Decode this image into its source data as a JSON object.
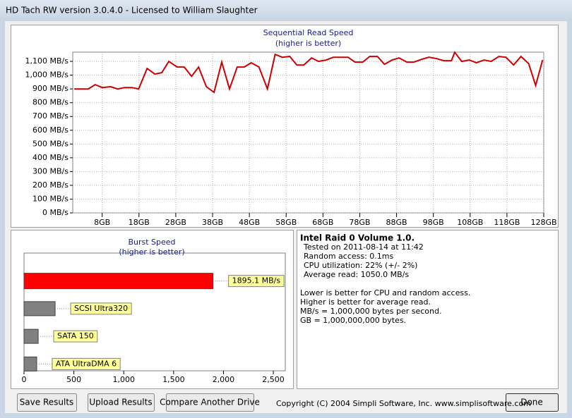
{
  "window": {
    "title": "HD Tach RW version 3.0.4.0 - Licensed to William Slaughter"
  },
  "chart_data": [
    {
      "type": "line",
      "title": "Sequential Read Speed",
      "subtitle": "(higher is better)",
      "color": "#cc0000",
      "grid": true,
      "x": [
        0.4,
        4.2,
        6.1,
        8,
        10.3,
        12.2,
        14.1,
        16,
        17.9,
        20.2,
        22.3,
        24.2,
        26.1,
        28.4,
        30.3,
        32.3,
        34.2,
        36.3,
        38.4,
        40.5,
        42.6,
        44.7,
        46.6,
        48.5,
        50.6,
        52.9,
        55,
        56.9,
        59,
        60.9,
        62.8,
        64.9,
        66.8,
        68.9,
        70.8,
        72.9,
        74.8,
        76.7,
        78.8,
        80.7,
        82.8,
        84.7,
        86.8,
        88.7,
        90.8,
        92.7,
        94.8,
        96.8,
        98.9,
        100.8,
        102.9,
        103.8,
        105.7,
        107.8,
        109.7,
        111.8,
        113.7,
        115.8,
        117.7,
        119.8,
        121.8,
        123.9,
        125.8,
        127.7
      ],
      "values": [
        900,
        900,
        931,
        910,
        916,
        900,
        910,
        910,
        900,
        1049,
        1008,
        1018,
        1100,
        1059,
        1059,
        992,
        1059,
        916,
        875,
        1095,
        900,
        1059,
        1059,
        1090,
        1059,
        900,
        1151,
        1130,
        1136,
        1074,
        1074,
        1125,
        1100,
        1110,
        1130,
        1130,
        1130,
        1095,
        1095,
        1136,
        1136,
        1079,
        1110,
        1125,
        1095,
        1095,
        1115,
        1130,
        1120,
        1105,
        1105,
        1166,
        1100,
        1110,
        1090,
        1110,
        1100,
        1136,
        1130,
        1074,
        1136,
        1084,
        926,
        1110
      ],
      "xlim": [
        0,
        128
      ],
      "xticks": [
        {
          "value": 8,
          "label": "8GB"
        },
        {
          "value": 18,
          "label": "18GB"
        },
        {
          "value": 28,
          "label": "28GB"
        },
        {
          "value": 38,
          "label": "38GB"
        },
        {
          "value": 48,
          "label": "48GB"
        },
        {
          "value": 58,
          "label": "58GB"
        },
        {
          "value": 68,
          "label": "68GB"
        },
        {
          "value": 78,
          "label": "78GB"
        },
        {
          "value": 88,
          "label": "88GB"
        },
        {
          "value": 98,
          "label": "98GB"
        },
        {
          "value": 108,
          "label": "108GB"
        },
        {
          "value": 118,
          "label": "118GB"
        },
        {
          "value": 128,
          "label": "128GB"
        }
      ],
      "ylim": [
        0,
        1167
      ],
      "yticks": [
        {
          "value": 0,
          "label": "0 MB/s"
        },
        {
          "value": 100,
          "label": "100 MB/s"
        },
        {
          "value": 200,
          "label": "200 MB/s"
        },
        {
          "value": 300,
          "label": "300 MB/s"
        },
        {
          "value": 400,
          "label": "400 MB/s"
        },
        {
          "value": 500,
          "label": "500 MB/s"
        },
        {
          "value": 600,
          "label": "600 MB/s"
        },
        {
          "value": 700,
          "label": "700 MB/s"
        },
        {
          "value": 800,
          "label": "800 MB/s"
        },
        {
          "value": 900,
          "label": "900 MB/s"
        },
        {
          "value": 1000,
          "label": "1,000 MB/s"
        },
        {
          "value": 1100,
          "label": "1,100 MB/s"
        }
      ]
    },
    {
      "type": "bar",
      "orientation": "horizontal",
      "title": "Burst Speed",
      "subtitle": "(higher is better)",
      "categories": [
        null,
        "SCSI Ultra320",
        "SATA 150",
        "ATA UltraDMA 6"
      ],
      "values": [
        1895.1,
        312,
        142,
        127
      ],
      "value_labels": [
        "1895.1 MB/s",
        null,
        null,
        null
      ],
      "colors": [
        "#ff0000",
        "#808080",
        "#808080",
        "#808080"
      ],
      "xlim": [
        0,
        2620
      ],
      "xticks": [
        0,
        500,
        {
          "value": 1000,
          "label": "1,000"
        },
        {
          "value": 1500,
          "label": "1,500"
        },
        {
          "value": 2000,
          "label": "2,000"
        },
        {
          "value": 2500,
          "label": "2,500"
        }
      ]
    }
  ],
  "info": {
    "heading": "Intel Raid 0 Volume 1.0.",
    "details": [
      "Tested on 2011-08-14 at 11:42",
      "Random access: 0.1ms",
      "CPU utilization: 22% (+/- 2%)",
      "Average read: 1050.0 MB/s"
    ],
    "notes": [
      "Lower is better for CPU and random access.",
      "Higher is better for average read.",
      "MB/s = 1,000,000 bytes per second.",
      "GB = 1,000,000,000 bytes."
    ]
  },
  "buttons": [
    "Save Results",
    "Upload Results",
    "Compare Another Drive",
    "Done"
  ],
  "copyright": "Copyright (C) 2004 Simpli Software, Inc. www.simplisoftware.com"
}
